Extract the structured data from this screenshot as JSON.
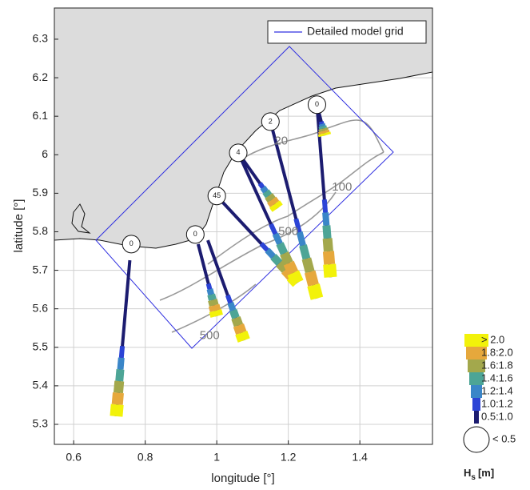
{
  "chart_data": {
    "type": "map",
    "xlabel": "longitude [°]",
    "ylabel": "latitude [°]",
    "xlim": [
      0.546,
      1.603
    ],
    "ylim": [
      5.248,
      6.381
    ],
    "xticks": [
      0.6,
      0.8,
      1,
      1.2,
      1.4
    ],
    "yticks": [
      5.3,
      5.4,
      5.5,
      5.6,
      5.7,
      5.8,
      5.9,
      6,
      6.1,
      6.2,
      6.3
    ],
    "grid": true,
    "legend": "Detailed model grid",
    "legend_position": "upper right",
    "legend_color": "#3030e0",
    "stations": [
      {
        "label": "0",
        "lon": 0.761,
        "lat": 5.768
      },
      {
        "label": "0",
        "lon": 0.94,
        "lat": 5.793
      },
      {
        "label": "45",
        "lon": 1.0,
        "lat": 5.893
      },
      {
        "label": "4",
        "lon": 1.06,
        "lat": 6.005
      },
      {
        "label": "2",
        "lon": 1.15,
        "lat": 6.086
      },
      {
        "label": "0",
        "lon": 1.28,
        "lat": 6.13
      }
    ],
    "rays": [
      {
        "lon": [
          0.757,
          0.719
        ],
        "lat": [
          5.726,
          5.321
        ]
      },
      {
        "lon": [
          0.948,
          1.0
        ],
        "lat": [
          5.768,
          5.581
        ]
      },
      {
        "lon": [
          0.975,
          1.076
        ],
        "lat": [
          5.778,
          5.518
        ]
      },
      {
        "lon": [
          1.0,
          1.226
        ],
        "lat": [
          5.893,
          5.668
        ]
      },
      {
        "lon": [
          1.06,
          1.17
        ],
        "lat": [
          6.005,
          5.861
        ]
      },
      {
        "lon": [
          1.06,
          1.226
        ],
        "lat": [
          6.005,
          5.668
        ]
      },
      {
        "lon": [
          1.15,
          1.28
        ],
        "lat": [
          6.086,
          5.627
        ]
      },
      {
        "lon": [
          1.28,
          1.318
        ],
        "lat": [
          6.13,
          5.682
        ]
      },
      {
        "lon": [
          1.28,
          1.302
        ],
        "lat": [
          6.13,
          6.05
        ]
      }
    ],
    "contour_labels": [
      {
        "text": "20",
        "lon": 1.18,
        "lat": 6.035
      },
      {
        "text": "100",
        "lon": 1.35,
        "lat": 5.915
      },
      {
        "text": "500",
        "lon": 1.2,
        "lat": 5.8
      },
      {
        "text": "500",
        "lon": 0.98,
        "lat": 5.53
      }
    ],
    "classes": [
      {
        "label": "> 2.0",
        "color": "#f2f20a"
      },
      {
        "label": "1.8:2.0",
        "color": "#e6a83c"
      },
      {
        "label": "1.6:1.8",
        "color": "#a3a84c"
      },
      {
        "label": "1.4:1.6",
        "color": "#4da596"
      },
      {
        "label": "1.2:1.4",
        "color": "#3a86c8"
      },
      {
        "label": "1.0:1.2",
        "color": "#2c44d6"
      },
      {
        "label": "0.5:1.0",
        "color": "#1c1c70"
      },
      {
        "label": "< 0.5",
        "color": "#ffffff"
      }
    ],
    "legend_title": "H",
    "legend_title_sub": "s",
    "legend_title_unit": "[m]"
  }
}
